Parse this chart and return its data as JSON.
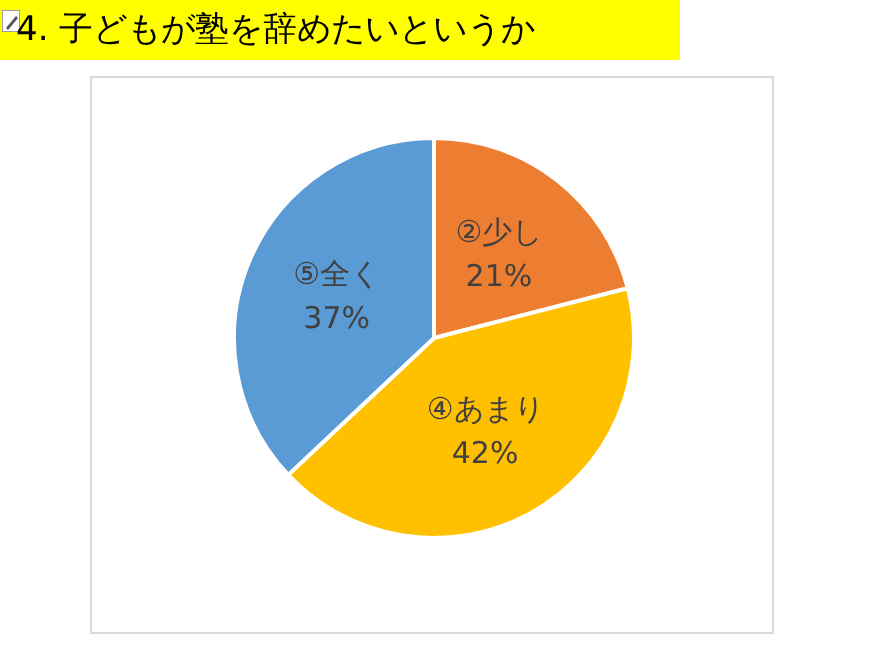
{
  "chart_data": {
    "type": "pie",
    "title": "4. 子どもが塾を辞めたいというか",
    "categories": [
      "②少し",
      "④あまり",
      "⑤全く"
    ],
    "values": [
      21,
      42,
      37
    ],
    "colors": [
      "#ed7d31",
      "#ffc000",
      "#5b9bd5"
    ],
    "value_labels": [
      "21%",
      "42%",
      "37%"
    ],
    "legend": false
  }
}
